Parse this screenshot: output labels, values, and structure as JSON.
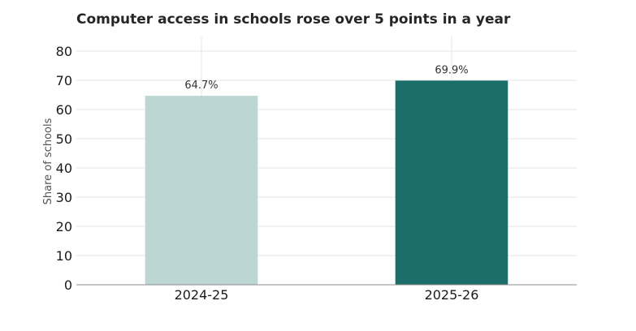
{
  "chart_data": {
    "type": "bar",
    "title": "Computer access in schools rose over 5 points in a year",
    "xlabel": "",
    "ylabel": "Share of schools",
    "categories": [
      "2024-25",
      "2025-26"
    ],
    "values": [
      64.7,
      69.9
    ],
    "data_labels": [
      "64.7%",
      "69.9%"
    ],
    "bar_colors": [
      "#bcd6d4",
      "#1b6e69"
    ],
    "ylim": [
      0,
      85
    ],
    "yticks": [
      0,
      10,
      20,
      30,
      40,
      50,
      60,
      70,
      80
    ],
    "grid": true,
    "legend": "none"
  }
}
